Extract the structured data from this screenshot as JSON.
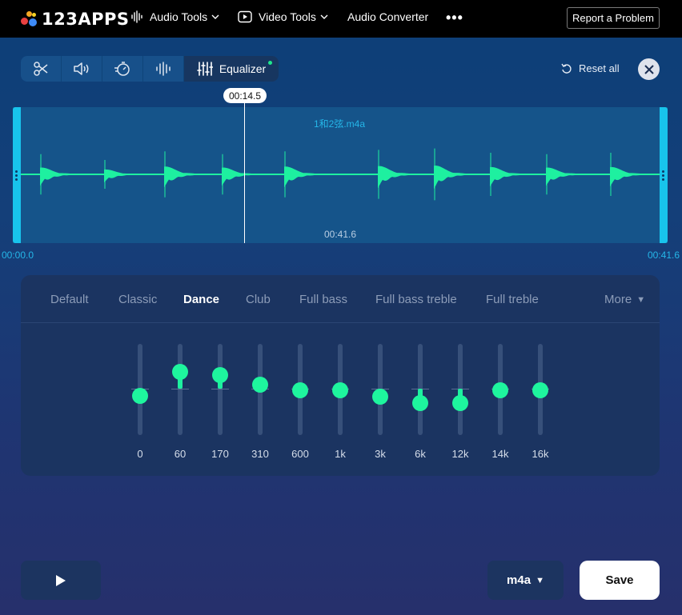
{
  "brand": {
    "logo_text": "123APPS",
    "dot_colors": [
      "#f5a623",
      "#e94040",
      "#3d8af7",
      "#f5d223"
    ]
  },
  "nav": {
    "audio_tools": "Audio Tools",
    "video_tools": "Video Tools",
    "audio_converter": "Audio Converter",
    "more": "•••",
    "report": "Report a Problem"
  },
  "toolbar": {
    "tools": [
      {
        "name": "cut",
        "icon": "scissors-icon"
      },
      {
        "name": "volume",
        "icon": "speaker-icon"
      },
      {
        "name": "speed",
        "icon": "speed-timer-icon"
      },
      {
        "name": "noise",
        "icon": "waveform-icon"
      }
    ],
    "active_label": "Equalizer",
    "active_icon": "equalizer-sliders-icon",
    "reset_label": "Reset all"
  },
  "waveform": {
    "filename": "1和2弦.m4a",
    "duration_label": "00:41.6",
    "current_time": "00:14.5",
    "start_time": "00:00.0",
    "end_time": "00:41.6",
    "playhead_fraction": 0.349,
    "color": "#1ef0a0"
  },
  "equalizer": {
    "presets": [
      "Default",
      "Classic",
      "Dance",
      "Club",
      "Full bass",
      "Full bass treble",
      "Full treble"
    ],
    "active_preset": "Dance",
    "more_label": "More",
    "bands": [
      {
        "freq": "0",
        "level": -0.15
      },
      {
        "freq": "60",
        "level": 0.36
      },
      {
        "freq": "170",
        "level": 0.29
      },
      {
        "freq": "310",
        "level": 0.09
      },
      {
        "freq": "600",
        "level": -0.04
      },
      {
        "freq": "1k",
        "level": -0.04
      },
      {
        "freq": "3k",
        "level": -0.18
      },
      {
        "freq": "6k",
        "level": -0.31
      },
      {
        "freq": "12k",
        "level": -0.31
      },
      {
        "freq": "14k",
        "level": -0.04
      },
      {
        "freq": "16k",
        "level": -0.04
      }
    ]
  },
  "bottom": {
    "format": "m4a",
    "save_label": "Save"
  }
}
